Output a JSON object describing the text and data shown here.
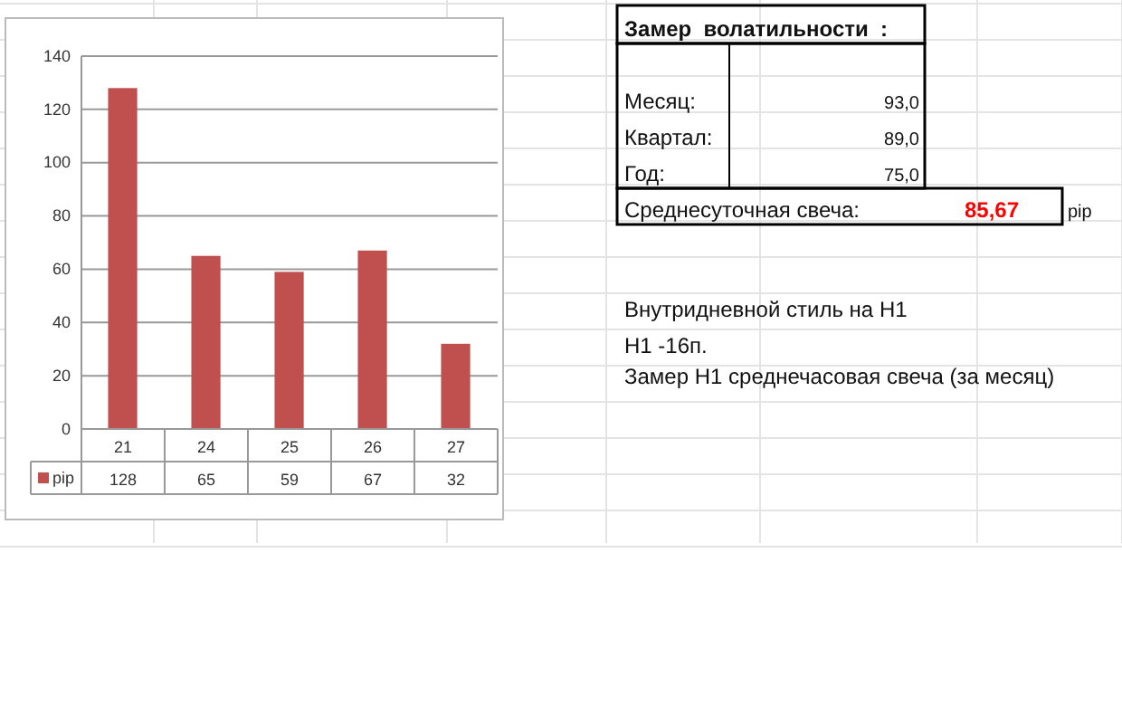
{
  "chart_data": {
    "type": "bar",
    "categories": [
      "21",
      "24",
      "25",
      "26",
      "27"
    ],
    "series": [
      {
        "name": "pip",
        "color": "#c0504d",
        "values": [
          128,
          65,
          59,
          67,
          32
        ]
      }
    ],
    "ylim": [
      0,
      140
    ],
    "yticks": [
      0,
      20,
      40,
      60,
      80,
      100,
      120,
      140
    ],
    "grid": "y",
    "legend": "bottom",
    "data_labels": true,
    "annotations": [
      "Замер  волатильности  :",
      "Месяц:",
      "93,0",
      "Квартал:",
      "89,0",
      "Год:",
      "75,0",
      "Среднесуточная свеча:",
      "85,67",
      "pip",
      "Внутридневной стиль на H1",
      "H1 -16п.",
      "Замер H1 среднечасовая свеча (за месяц)"
    ]
  }
}
